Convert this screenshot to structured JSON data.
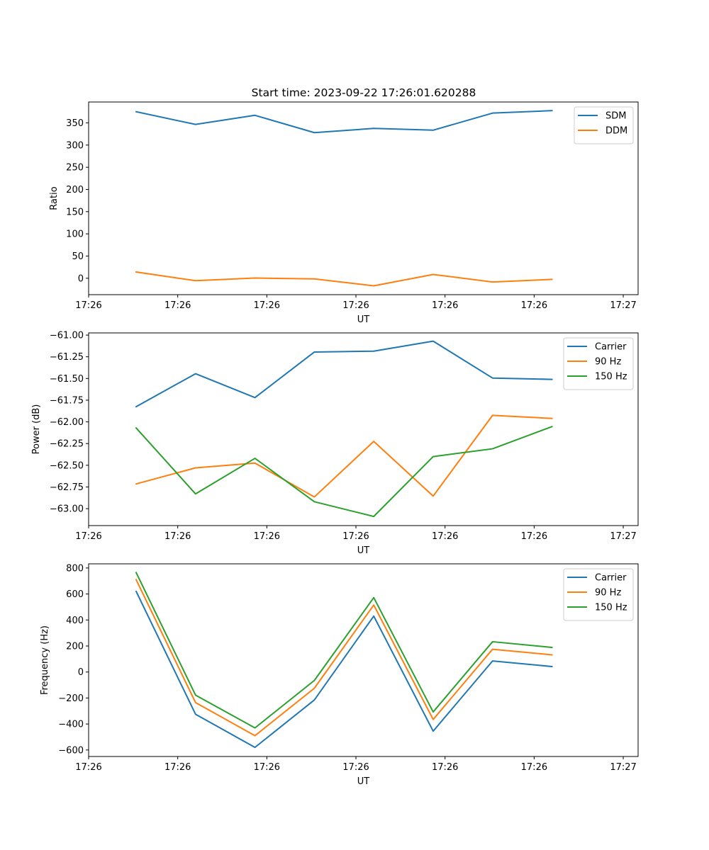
{
  "title": "Start time: 2023-09-22 17:26:01.620288",
  "colors": {
    "c0": "#1f77b4",
    "c1": "#ff7f0e",
    "c2": "#2ca02c"
  },
  "chart_data": [
    {
      "type": "line",
      "title": "Start time: 2023-09-22 17:26:01.620288",
      "xlabel": "UT",
      "ylabel": "Ratio",
      "x": [
        1,
        2,
        3,
        4,
        5,
        6,
        7,
        8
      ],
      "xlim": [
        0.2,
        9.45
      ],
      "xticks": [
        0.2,
        1.7,
        3.2,
        4.7,
        6.2,
        7.7,
        9.2
      ],
      "xtick_labels": [
        "17:26",
        "17:26",
        "17:26",
        "17:26",
        "17:26",
        "17:26",
        "17:27"
      ],
      "ylim": [
        -37,
        397
      ],
      "yticks": [
        0,
        50,
        100,
        150,
        200,
        250,
        300,
        350
      ],
      "ytick_labels": [
        "0",
        "50",
        "100",
        "150",
        "200",
        "250",
        "300",
        "350"
      ],
      "legend": "top-right",
      "series": [
        {
          "name": "SDM",
          "color": "#1f77b4",
          "values": [
            375,
            346.5,
            367,
            328,
            337.5,
            333.5,
            372,
            377.5
          ]
        },
        {
          "name": "DDM",
          "color": "#ff7f0e",
          "values": [
            14,
            -5.5,
            0.5,
            -1.5,
            -17,
            8.5,
            -8.5,
            -2.5
          ]
        }
      ]
    },
    {
      "type": "line",
      "xlabel": "UT",
      "ylabel": "Power (dB)",
      "x": [
        1,
        2,
        3,
        4,
        5,
        6,
        7,
        8
      ],
      "xlim": [
        0.2,
        9.45
      ],
      "xticks": [
        0.2,
        1.7,
        3.2,
        4.7,
        6.2,
        7.7,
        9.2
      ],
      "xtick_labels": [
        "17:26",
        "17:26",
        "17:26",
        "17:26",
        "17:26",
        "17:26",
        "17:27"
      ],
      "ylim": [
        -63.195,
        -60.975
      ],
      "yticks": [
        -63.0,
        -62.75,
        -62.5,
        -62.25,
        -62.0,
        -61.75,
        -61.5,
        -61.25,
        -61.0
      ],
      "ytick_labels": [
        "−63.00",
        "−62.75",
        "−62.50",
        "−62.25",
        "−62.00",
        "−61.75",
        "−61.50",
        "−61.25",
        "−61.00"
      ],
      "legend": "top-right",
      "series": [
        {
          "name": "Carrier",
          "color": "#1f77b4",
          "values": [
            -61.825,
            -61.445,
            -61.72,
            -61.195,
            -61.185,
            -61.07,
            -61.495,
            -61.51
          ]
        },
        {
          "name": "90 Hz",
          "color": "#ff7f0e",
          "values": [
            -62.715,
            -62.53,
            -62.475,
            -62.865,
            -62.225,
            -62.855,
            -61.925,
            -61.96
          ]
        },
        {
          "name": "150 Hz",
          "color": "#2ca02c",
          "values": [
            -62.07,
            -62.83,
            -62.42,
            -62.92,
            -63.09,
            -62.4,
            -62.31,
            -62.055
          ]
        }
      ]
    },
    {
      "type": "line",
      "xlabel": "UT",
      "ylabel": "Frequency (Hz)",
      "x": [
        1,
        2,
        3,
        4,
        5,
        6,
        7,
        8
      ],
      "xlim": [
        0.2,
        9.45
      ],
      "xticks": [
        0.2,
        1.7,
        3.2,
        4.7,
        6.2,
        7.7,
        9.2
      ],
      "xtick_labels": [
        "17:26",
        "17:26",
        "17:26",
        "17:26",
        "17:26",
        "17:26",
        "17:27"
      ],
      "ylim": [
        -650,
        832
      ],
      "yticks": [
        -600,
        -400,
        -200,
        0,
        200,
        400,
        600,
        800
      ],
      "ytick_labels": [
        "−600",
        "−400",
        "−200",
        "0",
        "200",
        "400",
        "600",
        "800"
      ],
      "legend": "top-right",
      "series": [
        {
          "name": "Carrier",
          "color": "#1f77b4",
          "values": [
            620,
            -325,
            -580,
            -215,
            430,
            -455,
            85,
            42
          ]
        },
        {
          "name": "90 Hz",
          "color": "#ff7f0e",
          "values": [
            710,
            -235,
            -490,
            -125,
            515,
            -365,
            175,
            132
          ]
        },
        {
          "name": "150 Hz",
          "color": "#2ca02c",
          "values": [
            765,
            -178,
            -430,
            -65,
            572,
            -307,
            233,
            189
          ]
        }
      ]
    }
  ]
}
